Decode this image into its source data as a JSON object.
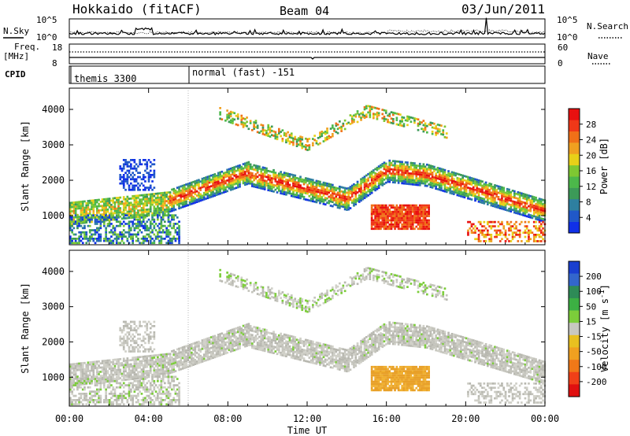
{
  "header": {
    "station": "Hokkaido (fitACF)",
    "beam": "Beam 04",
    "date": "03/Jun/2011"
  },
  "noise_panel": {
    "left_label": "N.Sky",
    "right_label": "N.Search",
    "left_ticks": [
      "10^5",
      "10^0"
    ],
    "right_ticks": [
      "10^5",
      "10^0"
    ]
  },
  "freq_panel": {
    "left_label_1": "Freq.",
    "left_label_2": "[MHz]",
    "left_ticks": [
      "18",
      "8"
    ],
    "right_label": "Nave",
    "right_ticks": [
      "60",
      "0"
    ]
  },
  "cpid_panel": {
    "label": "CPID",
    "segments": [
      {
        "text": "themis 3300",
        "start_hour": 0
      },
      {
        "text": "normal (fast) -151",
        "start_hour": 6
      }
    ]
  },
  "colors": {
    "power": [
      "#1030e8",
      "#2058c8",
      "#2e7fa0",
      "#3c9a58",
      "#4cb84a",
      "#7ec832",
      "#e8d018",
      "#f0a020",
      "#f07018",
      "#f03818",
      "#e81010"
    ],
    "velocity_bar": [
      "#1a3fd0",
      "#3366cc",
      "#2e8b57",
      "#3cb043",
      "#7ccd3a",
      "#c8c8c0",
      "#e8c020",
      "#f0a020",
      "#f07818",
      "#f04018",
      "#e01010"
    ],
    "velocity_field": [
      "#b8b8b0",
      "#c4c4bc",
      "#d0d0c8",
      "#7ccd3a",
      "#5ab83a",
      "#e8a028",
      "#f0b030"
    ]
  },
  "chart_data": [
    {
      "type": "heatmap",
      "panel": "power",
      "ylabel": "Slant Range [km]",
      "y_ticks": [
        "1000",
        "2000",
        "3000",
        "4000"
      ],
      "ylim": [
        180,
        4600
      ],
      "colorbar_label": "Power [dB]",
      "colorbar_ticks": [
        "4",
        "8",
        "12",
        "16",
        "20",
        "24",
        "28"
      ],
      "colorbar_range": [
        0,
        30
      ]
    },
    {
      "type": "heatmap",
      "panel": "velocity",
      "ylabel": "Slant Range [km]",
      "y_ticks": [
        "1000",
        "2000",
        "3000",
        "4000"
      ],
      "ylim": [
        180,
        4600
      ],
      "colorbar_label_main": "Velocity [m s",
      "colorbar_label_sup": "-1",
      "colorbar_label_end": "]",
      "colorbar_ticks": [
        "200",
        "100",
        "50",
        "15",
        "-15",
        "-50",
        "-100",
        "-200"
      ],
      "colorbar_range": [
        -250,
        250
      ]
    }
  ],
  "time_axis": {
    "xlabel": "Time UT",
    "ticks": [
      "00:00",
      "04:00",
      "08:00",
      "12:00",
      "16:00",
      "20:00",
      "00:00"
    ],
    "tick_hours": [
      0,
      4,
      8,
      12,
      16,
      20,
      24
    ],
    "range_hours": [
      0,
      24
    ]
  }
}
